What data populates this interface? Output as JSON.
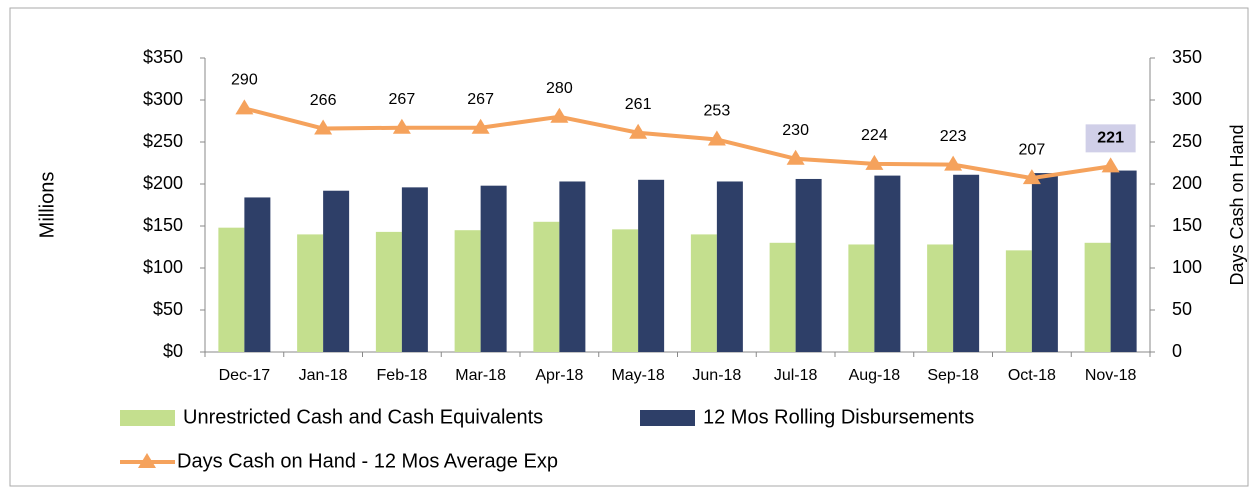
{
  "chart_data": {
    "type": "bar-line",
    "y_label": "Millions",
    "y2_label": "Days Cash on Hand",
    "categories": [
      "Dec-17",
      "Jan-18",
      "Feb-18",
      "Mar-18",
      "Apr-18",
      "May-18",
      "Jun-18",
      "Jul-18",
      "Aug-18",
      "Sep-18",
      "Oct-18",
      "Nov-18"
    ],
    "series": [
      {
        "name": "Unrestricted Cash and Cash Equivalents",
        "color": "#c4df8e",
        "type": "bar",
        "values": [
          148,
          140,
          143,
          145,
          155,
          146,
          140,
          130,
          128,
          128,
          121,
          130
        ]
      },
      {
        "name": "12 Mos Rolling Disbursements",
        "color": "#2e3f68",
        "type": "bar",
        "values": [
          184,
          192,
          196,
          198,
          203,
          205,
          203,
          206,
          210,
          211,
          213,
          216
        ]
      },
      {
        "name": "Days Cash on Hand - 12 Mos Average Exp",
        "color": "#f5a25c",
        "type": "line",
        "axis": "y2",
        "values": [
          290,
          266,
          267,
          267,
          280,
          261,
          253,
          230,
          224,
          223,
          207,
          221
        ]
      }
    ],
    "ylim": [
      0,
      350
    ],
    "yticks": [
      {
        "value": 0,
        "label": "$0"
      },
      {
        "value": 50,
        "label": "$50"
      },
      {
        "value": 100,
        "label": "$100"
      },
      {
        "value": 150,
        "label": "$150"
      },
      {
        "value": 200,
        "label": "$200"
      },
      {
        "value": 250,
        "label": "$250"
      },
      {
        "value": 300,
        "label": "$300"
      },
      {
        "value": 350,
        "label": "$350"
      }
    ],
    "y2lim": [
      0,
      350
    ],
    "y2ticks": [
      0,
      50,
      100,
      150,
      200,
      250,
      300,
      350
    ]
  }
}
